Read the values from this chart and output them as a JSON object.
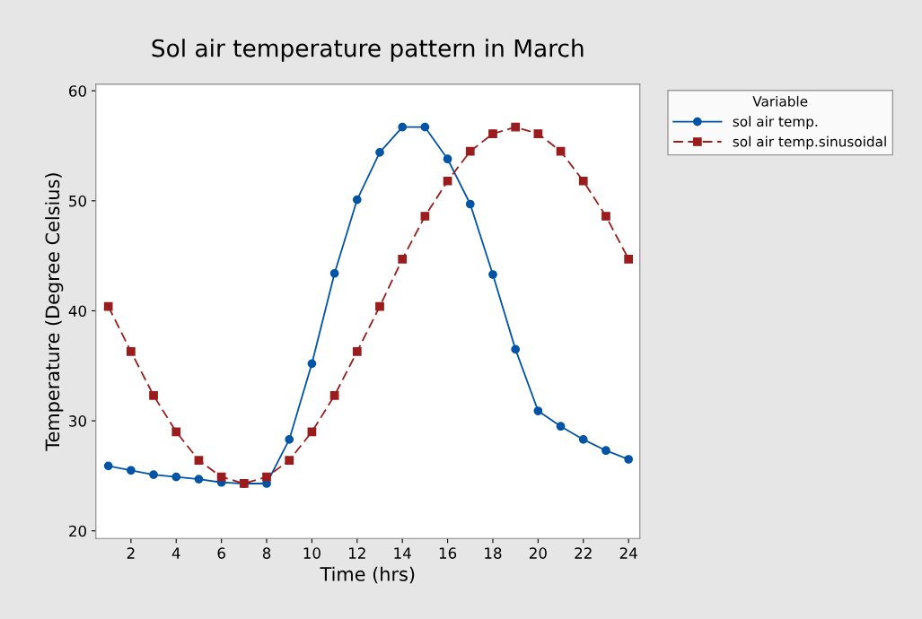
{
  "chart_data": {
    "type": "line",
    "title": "Sol air temperature pattern in March",
    "xlabel": "Time (hrs)",
    "ylabel": "Temperature (Degree Celsius)",
    "legend_title": "Variable",
    "x": [
      1,
      2,
      3,
      4,
      5,
      6,
      7,
      8,
      9,
      10,
      11,
      12,
      13,
      14,
      15,
      16,
      17,
      18,
      19,
      20,
      21,
      22,
      23,
      24
    ],
    "series": [
      {
        "name": "sol air temp.",
        "color": "#0054a6",
        "marker": "circle",
        "line_style": "solid",
        "values": [
          25.9,
          25.5,
          25.1,
          24.9,
          24.7,
          24.4,
          24.3,
          24.3,
          28.3,
          35.2,
          43.4,
          50.1,
          54.4,
          56.7,
          56.7,
          53.8,
          49.7,
          43.3,
          36.5,
          30.9,
          29.5,
          28.3,
          27.3,
          26.5
        ]
      },
      {
        "name": "sol air temp.sinusoidal",
        "color": "#9a1c1c",
        "marker": "square",
        "line_style": "dashed",
        "values": [
          40.4,
          36.3,
          32.3,
          29.0,
          26.4,
          24.9,
          24.3,
          24.9,
          26.4,
          29.0,
          32.3,
          36.3,
          40.4,
          44.7,
          48.6,
          51.8,
          54.5,
          56.1,
          56.7,
          56.1,
          54.5,
          51.8,
          48.6,
          44.7
        ]
      }
    ],
    "xlim": [
      0.45,
      24.5
    ],
    "xticks": [
      2,
      4,
      6,
      8,
      10,
      12,
      14,
      16,
      18,
      20,
      22,
      24
    ],
    "ylim": [
      19.3,
      60.6
    ],
    "yticks": [
      20,
      30,
      40,
      50,
      60
    ],
    "grid": false,
    "legend": "top right"
  }
}
